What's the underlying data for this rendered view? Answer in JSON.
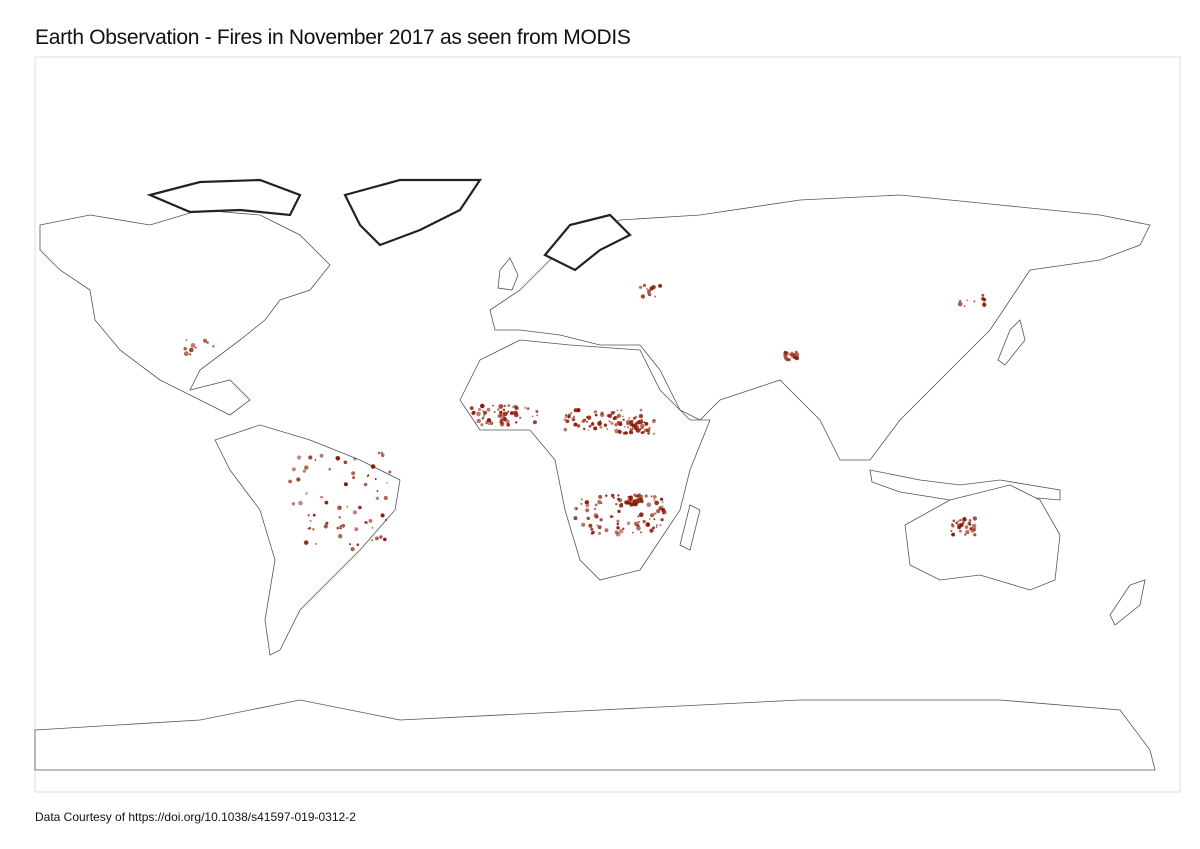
{
  "header": {
    "title": "Earth Observation - Fires in November 2017 as seen from MODIS"
  },
  "footer": {
    "credit": "Data Courtesy of https://doi.org/10.1038/s41597-019-0312-2"
  }
}
